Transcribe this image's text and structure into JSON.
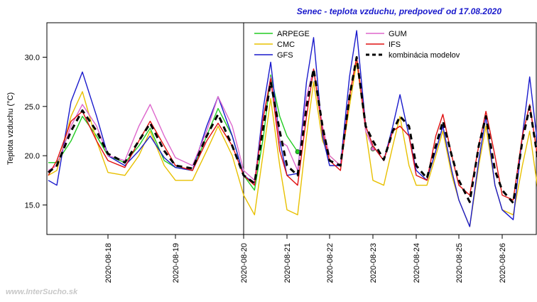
{
  "chart_data": {
    "type": "line",
    "title": "Senec - teplota vzduchu, predpoveď od 17.08.2020",
    "y_label": "Teplota vzduchu (°C)",
    "watermark": "www.InterSucho.sk",
    "xlim": [
      "2020-08-17 02:30",
      "2020-08-26 19:00"
    ],
    "xticks": [
      "2020-08-18",
      "2020-08-19",
      "2020-08-20",
      "2020-08-21",
      "2020-08-22",
      "2020-08-23",
      "2020-08-24",
      "2020-08-25",
      "2020-08-26"
    ],
    "vline": "2020-08-20",
    "ylim": [
      12.0,
      33.5
    ],
    "yticks": [
      {
        "value": 15,
        "label": "15.0"
      },
      {
        "value": 20,
        "label": "20.0"
      },
      {
        "value": 25,
        "label": "25.0"
      },
      {
        "value": 30,
        "label": "30.0"
      }
    ],
    "x": [
      "2020-08-17 03:00",
      "2020-08-17 06:00",
      "2020-08-17 11:00",
      "2020-08-17 15:00",
      "2020-08-17 20:00",
      "2020-08-18 00:00",
      "2020-08-18 06:00",
      "2020-08-18 11:00",
      "2020-08-18 15:00",
      "2020-08-18 20:00",
      "2020-08-19 00:00",
      "2020-08-19 06:00",
      "2020-08-19 11:00",
      "2020-08-19 15:00",
      "2020-08-19 20:00",
      "2020-08-20 00:00",
      "2020-08-20 06:00",
      "2020-08-20 11:00",
      "2020-08-20 15:00",
      "2020-08-20 20:00",
      "2020-08-21 00:00",
      "2020-08-21 06:00",
      "2020-08-21 11:00",
      "2020-08-21 15:00",
      "2020-08-21 20:00",
      "2020-08-22 00:00",
      "2020-08-22 06:00",
      "2020-08-22 11:00",
      "2020-08-22 15:00",
      "2020-08-22 20:00",
      "2020-08-23 00:00",
      "2020-08-23 06:00",
      "2020-08-23 11:00",
      "2020-08-23 15:00",
      "2020-08-23 20:00",
      "2020-08-24 00:00",
      "2020-08-24 06:00",
      "2020-08-24 11:00",
      "2020-08-24 15:00",
      "2020-08-24 20:00",
      "2020-08-25 00:00",
      "2020-08-25 06:00",
      "2020-08-25 11:00",
      "2020-08-25 15:00",
      "2020-08-25 20:00",
      "2020-08-26 00:00",
      "2020-08-26 06:00",
      "2020-08-26 11:00",
      "2020-08-26 15:00",
      "2020-08-26 20:00"
    ],
    "series": [
      {
        "name": "ARPEGE",
        "color": "#22cc22",
        "width": 1.4,
        "end_marker": true,
        "values": [
          19.3,
          19.3,
          21.5,
          24.0,
          22.0,
          20.0,
          19.3,
          21.0,
          22.8,
          19.5,
          18.8,
          18.5,
          22.0,
          24.8,
          22.0,
          18.0,
          16.5,
          22.0,
          28.2,
          24.0,
          22.0,
          20.4,
          null,
          null,
          null,
          null,
          null,
          null,
          null,
          null,
          null,
          null,
          null,
          null,
          null,
          null,
          null,
          null,
          null,
          null,
          null,
          null,
          null,
          null,
          null,
          null,
          null,
          null,
          null,
          null
        ]
      },
      {
        "name": "CMC",
        "color": "#e8c000",
        "width": 1.4,
        "values": [
          18.0,
          18.5,
          24.0,
          26.5,
          21.5,
          18.3,
          18.0,
          20.0,
          22.5,
          19.0,
          17.5,
          17.5,
          20.5,
          23.0,
          20.0,
          16.0,
          14.0,
          20.5,
          25.8,
          19.0,
          14.5,
          14.0,
          22.0,
          27.5,
          21.5,
          20.0,
          19.0,
          25.0,
          29.5,
          22.5,
          17.5,
          17.0,
          21.0,
          24.0,
          19.0,
          17.0,
          17.0,
          20.0,
          22.5,
          18.0,
          15.5,
          12.8,
          19.0,
          23.0,
          17.0,
          14.5,
          14.0,
          19.0,
          22.5,
          15.8
        ]
      },
      {
        "name": "GFS",
        "color": "#1a1acc",
        "width": 1.4,
        "values": [
          17.5,
          17.0,
          25.5,
          28.5,
          24.0,
          20.0,
          19.0,
          20.5,
          22.0,
          19.8,
          18.8,
          18.5,
          23.0,
          26.0,
          22.0,
          18.0,
          17.2,
          25.0,
          29.5,
          21.5,
          18.0,
          18.2,
          27.5,
          32.0,
          22.0,
          19.0,
          19.0,
          28.0,
          32.7,
          23.0,
          21.0,
          19.5,
          23.0,
          26.2,
          22.0,
          18.5,
          17.5,
          20.5,
          23.0,
          18.5,
          15.5,
          12.8,
          19.5,
          24.0,
          17.0,
          14.5,
          13.5,
          22.0,
          28.0,
          20.0
        ]
      },
      {
        "name": "GUM",
        "color": "#dd66cc",
        "width": 1.4,
        "end_marker": true,
        "values": [
          18.5,
          19.0,
          23.0,
          25.2,
          23.0,
          20.0,
          19.5,
          23.0,
          25.2,
          22.0,
          19.8,
          19.0,
          22.5,
          26.0,
          23.0,
          18.5,
          17.5,
          24.0,
          28.0,
          21.5,
          21.0,
          18.5,
          26.0,
          28.8,
          23.0,
          20.0,
          19.0,
          26.0,
          30.0,
          22.5,
          20.7,
          null,
          null,
          null,
          null,
          null,
          null,
          null,
          null,
          null,
          null,
          null,
          null,
          null,
          null,
          null,
          null,
          null,
          null,
          null
        ]
      },
      {
        "name": "IFS",
        "color": "#e01010",
        "width": 1.4,
        "values": [
          18.0,
          19.5,
          23.5,
          24.5,
          21.5,
          19.5,
          18.8,
          21.5,
          23.5,
          21.0,
          19.0,
          18.5,
          21.5,
          23.3,
          21.0,
          18.0,
          17.0,
          24.0,
          27.8,
          20.5,
          18.0,
          17.0,
          24.0,
          28.8,
          22.5,
          19.5,
          18.5,
          26.0,
          30.0,
          23.0,
          21.0,
          19.5,
          22.5,
          23.0,
          22.0,
          18.0,
          17.5,
          22.0,
          24.2,
          20.0,
          17.0,
          16.0,
          21.0,
          24.5,
          20.0,
          16.0,
          15.5,
          22.0,
          25.2,
          19.0
        ]
      },
      {
        "name": "kombinácia modelov",
        "color": "#000000",
        "width": 3,
        "dash": true,
        "values": [
          18.3,
          19.0,
          22.5,
          24.6,
          22.5,
          20.2,
          19.3,
          21.5,
          23.3,
          20.5,
          19.0,
          18.7,
          22.0,
          24.2,
          21.0,
          18.0,
          17.2,
          23.0,
          27.5,
          22.5,
          19.0,
          18.0,
          25.0,
          28.8,
          23.0,
          19.5,
          19.0,
          26.0,
          30.0,
          23.0,
          21.5,
          19.6,
          22.5,
          24.0,
          23.0,
          19.0,
          17.7,
          21.0,
          23.5,
          20.0,
          17.5,
          15.3,
          21.0,
          24.0,
          18.5,
          16.5,
          15.2,
          21.5,
          25.0,
          19.0
        ]
      }
    ]
  }
}
